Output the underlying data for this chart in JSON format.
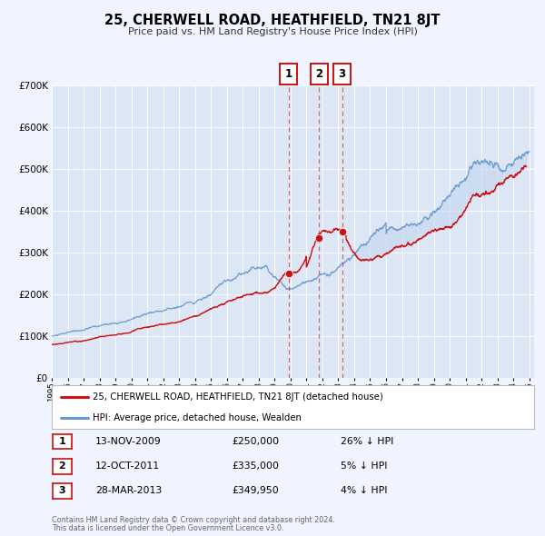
{
  "title": "25, CHERWELL ROAD, HEATHFIELD, TN21 8JT",
  "subtitle": "Price paid vs. HM Land Registry's House Price Index (HPI)",
  "red_line_label": "25, CHERWELL ROAD, HEATHFIELD, TN21 8JT (detached house)",
  "blue_line_label": "HPI: Average price, detached house, Wealden",
  "transactions": [
    {
      "num": 1,
      "date": "13-NOV-2009",
      "price": 250000,
      "pct": "26%",
      "direction": "↓",
      "year": 2009.87
    },
    {
      "num": 2,
      "date": "12-OCT-2011",
      "price": 335000,
      "pct": "5%",
      "direction": "↓",
      "year": 2011.79
    },
    {
      "num": 3,
      "date": "28-MAR-2013",
      "price": 349950,
      "pct": "4%",
      "direction": "↓",
      "year": 2013.24
    }
  ],
  "footer_line1": "Contains HM Land Registry data © Crown copyright and database right 2024.",
  "footer_line2": "This data is licensed under the Open Government Licence v3.0.",
  "ylim": [
    0,
    700000
  ],
  "yticks": [
    0,
    100000,
    200000,
    300000,
    400000,
    500000,
    600000,
    700000
  ],
  "ytick_labels": [
    "£0",
    "£100K",
    "£200K",
    "£300K",
    "£400K",
    "£500K",
    "£600K",
    "£700K"
  ],
  "xlim_start": 1995.0,
  "xlim_end": 2025.3,
  "background_color": "#f0f4ff",
  "plot_bg_color": "#dce6f5",
  "red_color": "#cc1111",
  "blue_color": "#6699cc",
  "shade_color": "#c8d8f0"
}
